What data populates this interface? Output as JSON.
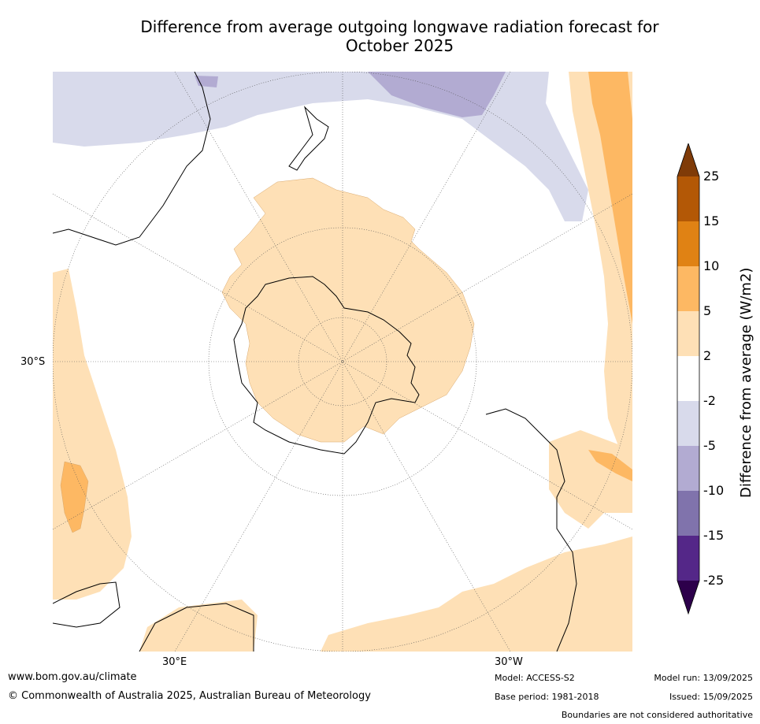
{
  "title_line1": "Difference from average outgoing longwave radiation forecast for",
  "title_line2": "October 2025",
  "axis_labels": {
    "lat": "30°S",
    "lon_east": "30°E",
    "lon_west": "30°W"
  },
  "colorbar": {
    "label": "Difference from average (W/m2)",
    "ticks": [
      "25",
      "15",
      "10",
      "5",
      "2",
      "-2",
      "-5",
      "-10",
      "-15",
      "-25"
    ],
    "colors": {
      "over": "#7f3b08",
      "b15_25": "#b35806",
      "b10_15": "#e08214",
      "b5_10": "#fdb863",
      "b2_5": "#fee0b6",
      "bm2_2": "#ffffff",
      "bm5_m2": "#d8daeb",
      "bm10_m5": "#b2abd2",
      "bm15_m10": "#8073ac",
      "bm25_m15": "#542788",
      "under": "#2d004b"
    }
  },
  "footer": {
    "url": "www.bom.gov.au/climate",
    "copyright": "© Commonwealth of Australia 2025, Australian Bureau of Meteorology",
    "model": "Model: ACCESS-S2",
    "base_period": "Base period: 1981-2018",
    "model_run": "Model run: 13/09/2025",
    "issued": "Issued: 15/09/2025",
    "disclaimer": "Boundaries are not considered authoritative"
  }
}
